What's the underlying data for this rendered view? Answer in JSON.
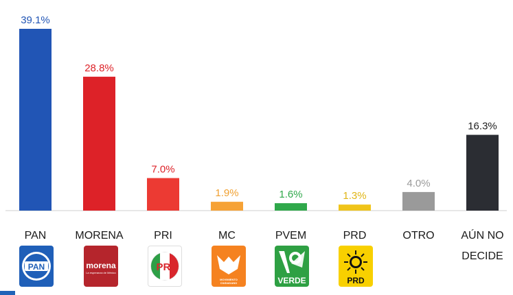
{
  "chart_data": {
    "type": "bar",
    "categories": [
      "PAN",
      "MORENA",
      "PRI",
      "MC",
      "PVEM",
      "PRD",
      "OTRO",
      "AÚN NO DECIDE"
    ],
    "category_lines": [
      [
        "PAN"
      ],
      [
        "MORENA"
      ],
      [
        "PRI"
      ],
      [
        "MC"
      ],
      [
        "PVEM"
      ],
      [
        "PRD"
      ],
      [
        "OTRO"
      ],
      [
        "AÚN NO",
        "DECIDE"
      ]
    ],
    "values": [
      39.1,
      28.8,
      7.0,
      1.9,
      1.6,
      1.3,
      4.0,
      16.3
    ],
    "value_labels": [
      "39.1%",
      "28.8%",
      "7.0%",
      "1.9%",
      "1.6%",
      "1.3%",
      "4.0%",
      "16.3%"
    ],
    "colors": [
      "#2155b5",
      "#dd2228",
      "#ec3a33",
      "#f6a236",
      "#2fa84a",
      "#f0c419",
      "#9a9a9a",
      "#2b2d33"
    ],
    "label_colors": [
      "#2155b5",
      "#dd2228",
      "#dd2228",
      "#f0a030",
      "#2fa84a",
      "#e0b514",
      "#9a9a9a",
      "#222222"
    ],
    "ylim": [
      0,
      39.1
    ],
    "grid": false,
    "legend": "none",
    "title": "",
    "xlabel": "",
    "ylabel": ""
  },
  "logos": [
    {
      "name": "pan-logo",
      "text": "PAN",
      "color": "#1f5fb8"
    },
    {
      "name": "morena-logo",
      "text": "morena",
      "subtext": "La esperanza de México",
      "color": "#b5252c"
    },
    {
      "name": "pri-logo",
      "text": "PRI",
      "color": "#ffffff"
    },
    {
      "name": "mc-logo",
      "text": "MOVIMIENTO CIUDADANO",
      "color": "#f58220"
    },
    {
      "name": "pvem-logo",
      "text": "VERDE",
      "color": "#2ea043"
    },
    {
      "name": "prd-logo",
      "text": "PRD",
      "color": "#f8d000"
    }
  ]
}
